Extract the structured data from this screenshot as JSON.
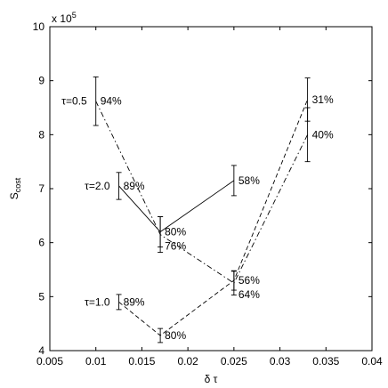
{
  "chart_data": {
    "type": "line",
    "xlabel": "δ τ",
    "ylabel": "S",
    "ylabel_sub": "cost",
    "exponent_label": "x 10",
    "exponent_power": "5",
    "xlim": [
      0.005,
      0.04
    ],
    "ylim": [
      4,
      10
    ],
    "x_ticks": [
      "0.005",
      "0.01",
      "0.015",
      "0.02",
      "0.025",
      "0.03",
      "0.035",
      "0.04"
    ],
    "y_ticks": [
      "4",
      "5",
      "6",
      "7",
      "8",
      "9",
      "10"
    ],
    "x_tick_values": [
      0.005,
      0.01,
      0.015,
      0.02,
      0.025,
      0.03,
      0.035,
      0.04
    ],
    "y_tick_values": [
      4,
      5,
      6,
      7,
      8,
      9,
      10
    ],
    "series": [
      {
        "label": "τ=0.5",
        "style": "dashdot",
        "points": [
          {
            "x": 0.01,
            "y": 8.62,
            "err": 0.45,
            "pct": "94%"
          },
          {
            "x": 0.017,
            "y": 6.15,
            "err": 0.33,
            "pct": "76%"
          },
          {
            "x": 0.025,
            "y": 5.25,
            "err": 0.22,
            "pct": "64%"
          },
          {
            "x": 0.033,
            "y": 8.0,
            "err": 0.5,
            "pct": "40%"
          }
        ]
      },
      {
        "label": "τ=2.0",
        "style": "solid",
        "points": [
          {
            "x": 0.0125,
            "y": 7.05,
            "err": 0.25,
            "pct": "89%"
          },
          {
            "x": 0.017,
            "y": 6.2,
            "err": 0.28,
            "pct": "80%"
          },
          {
            "x": 0.025,
            "y": 7.15,
            "err": 0.28,
            "pct": "58%"
          }
        ]
      },
      {
        "label": "τ=1.0",
        "style": "dashed",
        "points": [
          {
            "x": 0.0125,
            "y": 4.9,
            "err": 0.14,
            "pct": "89%"
          },
          {
            "x": 0.017,
            "y": 4.28,
            "err": 0.13,
            "pct": "80%"
          },
          {
            "x": 0.025,
            "y": 5.3,
            "err": 0.18,
            "pct": "56%"
          },
          {
            "x": 0.033,
            "y": 8.65,
            "err": 0.4,
            "pct": "31%"
          }
        ]
      }
    ]
  }
}
